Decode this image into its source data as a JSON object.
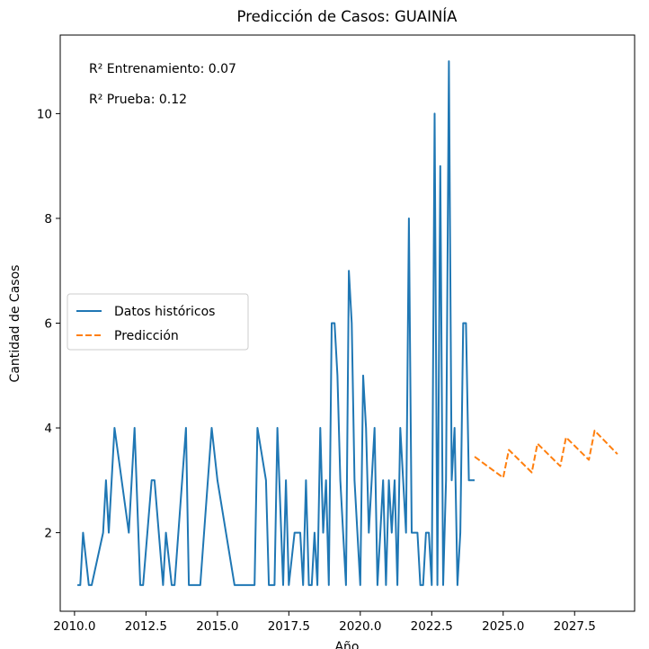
{
  "chart_data": {
    "type": "line",
    "title": "Predicción de Casos: GUAINÍA",
    "xlabel": "Año",
    "ylabel": "Cantidad de Casos",
    "xlim": [
      2009.5,
      2029.6
    ],
    "ylim": [
      0.5,
      11.5
    ],
    "xticks": [
      2010.0,
      2012.5,
      2015.0,
      2017.5,
      2020.0,
      2022.5,
      2025.0,
      2027.5
    ],
    "xtick_labels": [
      "2010.0",
      "2012.5",
      "2015.0",
      "2017.5",
      "2020.0",
      "2022.5",
      "2025.0",
      "2027.5"
    ],
    "yticks": [
      2,
      4,
      6,
      8,
      10
    ],
    "ytick_labels": [
      "2",
      "4",
      "6",
      "8",
      "10"
    ],
    "grid": false,
    "legend_position": "center-left",
    "annotations": [
      "R² Entrenamiento: 0.07",
      "R² Prueba: 0.12"
    ],
    "series": [
      {
        "name": "Datos históricos",
        "color": "#1f77b4",
        "style": "solid",
        "x": [
          2010.1,
          2010.2,
          2010.3,
          2010.5,
          2010.6,
          2011.0,
          2011.1,
          2011.2,
          2011.4,
          2011.9,
          2012.1,
          2012.3,
          2012.4,
          2012.7,
          2012.8,
          2013.1,
          2013.2,
          2013.4,
          2013.5,
          2013.9,
          2014.0,
          2014.2,
          2014.3,
          2014.4,
          2014.8,
          2015.0,
          2015.3,
          2015.6,
          2015.8,
          2016.2,
          2016.3,
          2016.4,
          2016.7,
          2016.8,
          2017.0,
          2017.1,
          2017.3,
          2017.4,
          2017.5,
          2017.7,
          2017.9,
          2018.0,
          2018.1,
          2018.2,
          2018.3,
          2018.4,
          2018.5,
          2018.6,
          2018.7,
          2018.8,
          2018.9,
          2019.0,
          2019.1,
          2019.2,
          2019.3,
          2019.4,
          2019.5,
          2019.6,
          2019.7,
          2019.8,
          2019.9,
          2020.0,
          2020.1,
          2020.2,
          2020.3,
          2020.4,
          2020.5,
          2020.6,
          2020.7,
          2020.8,
          2020.9,
          2021.0,
          2021.1,
          2021.2,
          2021.3,
          2021.4,
          2021.5,
          2021.6,
          2021.7,
          2021.8,
          2021.9,
          2022.0,
          2022.1,
          2022.2,
          2022.3,
          2022.4,
          2022.5,
          2022.6,
          2022.7,
          2022.8,
          2022.9,
          2023.0,
          2023.1,
          2023.2,
          2023.3,
          2023.4,
          2023.5,
          2023.6,
          2023.7,
          2023.8,
          2023.9,
          2024.0
        ],
        "values": [
          1,
          1,
          2,
          1,
          1,
          2,
          3,
          2,
          4,
          2,
          4,
          1,
          1,
          3,
          3,
          1,
          2,
          1,
          1,
          4,
          1,
          1,
          1,
          1,
          4,
          3,
          2,
          1,
          1,
          1,
          1,
          4,
          3,
          1,
          1,
          4,
          1,
          3,
          1,
          2,
          2,
          1,
          3,
          1,
          1,
          2,
          1,
          4,
          2,
          3,
          1,
          6,
          6,
          5,
          3,
          2,
          1,
          7,
          6,
          3,
          2,
          1,
          5,
          4,
          2,
          3,
          4,
          1,
          2,
          3,
          1,
          3,
          2,
          3,
          1,
          4,
          3,
          2,
          8,
          2,
          2,
          2,
          1,
          1,
          2,
          2,
          1,
          10,
          1,
          9,
          1,
          3,
          11,
          3,
          4,
          1,
          2,
          6,
          6,
          3,
          3,
          3
        ]
      },
      {
        "name": "Predicción",
        "color": "#ff7f0e",
        "style": "dashed",
        "x": [
          2024.0,
          2025.0,
          2025.2,
          2026.0,
          2026.2,
          2027.0,
          2027.2,
          2028.0,
          2028.2,
          2029.0
        ],
        "values": [
          3.45,
          3.05,
          3.58,
          3.15,
          3.7,
          3.27,
          3.82,
          3.39,
          3.95,
          3.5
        ]
      }
    ]
  }
}
